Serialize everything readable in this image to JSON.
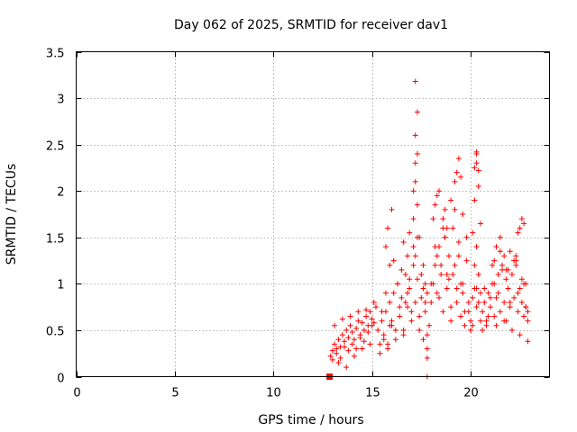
{
  "chart_data": {
    "type": "scatter",
    "title": "Day 062 of 2025, SRMTID for receiver dav1",
    "xlabel": "GPS time / hours",
    "ylabel": "SRMTID / TECUs",
    "xlim": [
      0,
      24
    ],
    "ylim": [
      0,
      3.5
    ],
    "xticks": [
      0,
      5,
      10,
      15,
      20
    ],
    "yticks": [
      0,
      0.5,
      1,
      1.5,
      2,
      2.5,
      3,
      3.5
    ],
    "ytick_labels": [
      "0",
      "0.5",
      "1",
      "1.5",
      "2",
      "2.5",
      "3",
      "3.5"
    ],
    "grid": true,
    "series": [
      {
        "name": "SRMTID",
        "color": "#ff0000",
        "marker": "+",
        "x": [
          12.9,
          13.0,
          13.1,
          13.2,
          13.3,
          13.4,
          13.5,
          13.6,
          13.7,
          13.8,
          13.9,
          14.0,
          14.1,
          14.2,
          14.3,
          14.4,
          14.5,
          14.6,
          14.7,
          14.8,
          14.9,
          15.0,
          15.1,
          15.2,
          13.0,
          13.2,
          13.4,
          13.6,
          13.8,
          14.0,
          14.2,
          14.4,
          14.6,
          14.8,
          15.0,
          13.1,
          13.5,
          13.9,
          14.3,
          14.7,
          15.1,
          13.3,
          13.7,
          14.1,
          14.5,
          14.9,
          15.3,
          15.4,
          15.5,
          15.6,
          15.7,
          15.8,
          15.9,
          16.0,
          16.1,
          16.2,
          16.3,
          16.4,
          16.5,
          16.6,
          16.7,
          16.8,
          16.9,
          17.0,
          17.1,
          17.2,
          17.3,
          17.4,
          17.5,
          17.6,
          17.7,
          17.8,
          17.9,
          15.4,
          15.6,
          15.8,
          16.0,
          16.2,
          16.4,
          16.6,
          16.8,
          17.0,
          17.2,
          17.4,
          17.6,
          17.8,
          15.5,
          15.9,
          16.3,
          16.7,
          17.1,
          17.5,
          15.7,
          16.1,
          16.5,
          16.9,
          17.3,
          17.7,
          15.7,
          15.8,
          15.9,
          16.0,
          16.6,
          16.8,
          16.9,
          17.1,
          17.1,
          17.2,
          17.2,
          17.3,
          17.2,
          17.3,
          17.2,
          17.3,
          17.4,
          17.6,
          17.7,
          17.8,
          17.8,
          18.0,
          18.1,
          18.2,
          18.3,
          18.4,
          18.5,
          18.6,
          18.7,
          18.8,
          18.9,
          19.0,
          19.1,
          19.2,
          19.3,
          19.4,
          19.5,
          19.6,
          19.7,
          19.8,
          19.9,
          20.0,
          20.1,
          20.2,
          20.3,
          20.4,
          20.5,
          18.0,
          18.2,
          18.4,
          18.6,
          18.8,
          19.0,
          19.2,
          19.4,
          19.6,
          19.8,
          20.0,
          20.2,
          20.4,
          18.1,
          18.5,
          18.9,
          19.3,
          19.7,
          20.1,
          20.5,
          18.3,
          18.7,
          19.1,
          19.5,
          19.9,
          20.3,
          18.2,
          18.3,
          18.4,
          18.6,
          18.7,
          18.8,
          19.0,
          19.2,
          19.3,
          19.4,
          19.5,
          19.6,
          20.2,
          20.3,
          20.3,
          20.3,
          20.4,
          20.2,
          20.4,
          20.5,
          20.1,
          20.3,
          20.6,
          20.7,
          20.8,
          20.9,
          21.0,
          21.1,
          21.2,
          21.3,
          21.4,
          21.5,
          21.6,
          21.7,
          21.8,
          21.9,
          22.0,
          22.1,
          22.2,
          22.3,
          22.4,
          22.5,
          22.6,
          22.7,
          22.8,
          22.9,
          20.6,
          20.8,
          21.0,
          21.2,
          21.4,
          21.6,
          21.8,
          22.0,
          22.2,
          22.4,
          22.6,
          22.8,
          20.7,
          21.1,
          21.5,
          21.9,
          22.3,
          22.7,
          20.9,
          21.3,
          21.7,
          22.1,
          22.5,
          22.9,
          21.3,
          21.5,
          21.7,
          22.0,
          22.3,
          22.4,
          22.5,
          22.6,
          22.7,
          22.8,
          22.9,
          21.2,
          21.8,
          17.8
        ],
        "y": [
          0.22,
          0.28,
          0.35,
          0.3,
          0.4,
          0.32,
          0.45,
          0.38,
          0.5,
          0.42,
          0.55,
          0.48,
          0.4,
          0.52,
          0.6,
          0.45,
          0.58,
          0.5,
          0.65,
          0.55,
          0.7,
          0.62,
          0.58,
          0.75,
          0.18,
          0.25,
          0.2,
          0.32,
          0.28,
          0.35,
          0.3,
          0.42,
          0.38,
          0.48,
          0.55,
          0.55,
          0.62,
          0.65,
          0.7,
          0.72,
          0.8,
          0.15,
          0.1,
          0.22,
          0.3,
          0.35,
          0.5,
          0.35,
          0.6,
          0.45,
          0.7,
          0.3,
          0.8,
          0.55,
          0.9,
          0.4,
          1.0,
          0.65,
          0.85,
          0.5,
          1.1,
          0.75,
          0.95,
          0.6,
          1.2,
          0.8,
          1.05,
          0.5,
          0.85,
          0.4,
          0.7,
          0.3,
          0.55,
          0.25,
          0.4,
          0.35,
          0.6,
          0.5,
          0.75,
          0.45,
          0.9,
          0.7,
          1.3,
          0.65,
          0.95,
          0.45,
          0.7,
          0.55,
          1.0,
          0.8,
          1.4,
          1.1,
          0.9,
          1.25,
          1.15,
          1.05,
          1.5,
          0.8,
          1.4,
          1.6,
          1.2,
          1.8,
          1.45,
          1.3,
          1.55,
          1.7,
          2.0,
          2.1,
          2.3,
          2.4,
          2.6,
          2.85,
          3.18,
          1.85,
          1.5,
          1.2,
          1.0,
          0.9,
          0.2,
          0.8,
          1.0,
          1.2,
          0.9,
          1.4,
          1.1,
          0.7,
          1.5,
          0.95,
          1.3,
          0.6,
          1.6,
          1.2,
          0.8,
          1.45,
          0.65,
          1.0,
          0.55,
          1.25,
          0.7,
          0.6,
          0.85,
          0.95,
          0.75,
          1.1,
          0.6,
          1.0,
          1.4,
          0.85,
          1.6,
          1.1,
          0.75,
          1.8,
          1.3,
          0.9,
          1.5,
          0.5,
          1.2,
          0.8,
          1.7,
          1.2,
          1.05,
          0.95,
          0.7,
          0.55,
          0.9,
          1.3,
          1.5,
          1.1,
          1.0,
          0.8,
          1.4,
          1.85,
          1.95,
          2.0,
          1.7,
          1.8,
          1.6,
          1.9,
          2.1,
          2.2,
          2.35,
          2.15,
          1.75,
          2.25,
          2.3,
          2.4,
          2.42,
          2.22,
          1.9,
          2.05,
          1.65,
          1.55,
          0.95,
          0.7,
          0.8,
          0.6,
          0.9,
          0.75,
          1.0,
          0.65,
          0.85,
          1.1,
          0.7,
          1.2,
          0.8,
          0.6,
          0.95,
          0.75,
          1.1,
          0.85,
          1.3,
          0.7,
          0.95,
          0.8,
          0.65,
          0.75,
          0.7,
          0.5,
          0.55,
          0.85,
          1.0,
          0.9,
          1.15,
          1.05,
          0.8,
          1.25,
          0.9,
          1.05,
          0.75,
          0.95,
          1.2,
          1.35,
          1.15,
          1.25,
          1.0,
          0.65,
          0.55,
          0.6,
          0.5,
          0.45,
          0.6,
          1.4,
          1.5,
          1.3,
          1.35,
          1.2,
          1.55,
          1.6,
          1.7,
          1.65,
          1.0,
          0.38,
          1.25,
          1.15,
          0.0
        ]
      },
      {
        "name": "zero-marker",
        "color": "#ff0000",
        "marker": "square",
        "x": [
          12.85
        ],
        "y": [
          0.0
        ]
      }
    ]
  }
}
